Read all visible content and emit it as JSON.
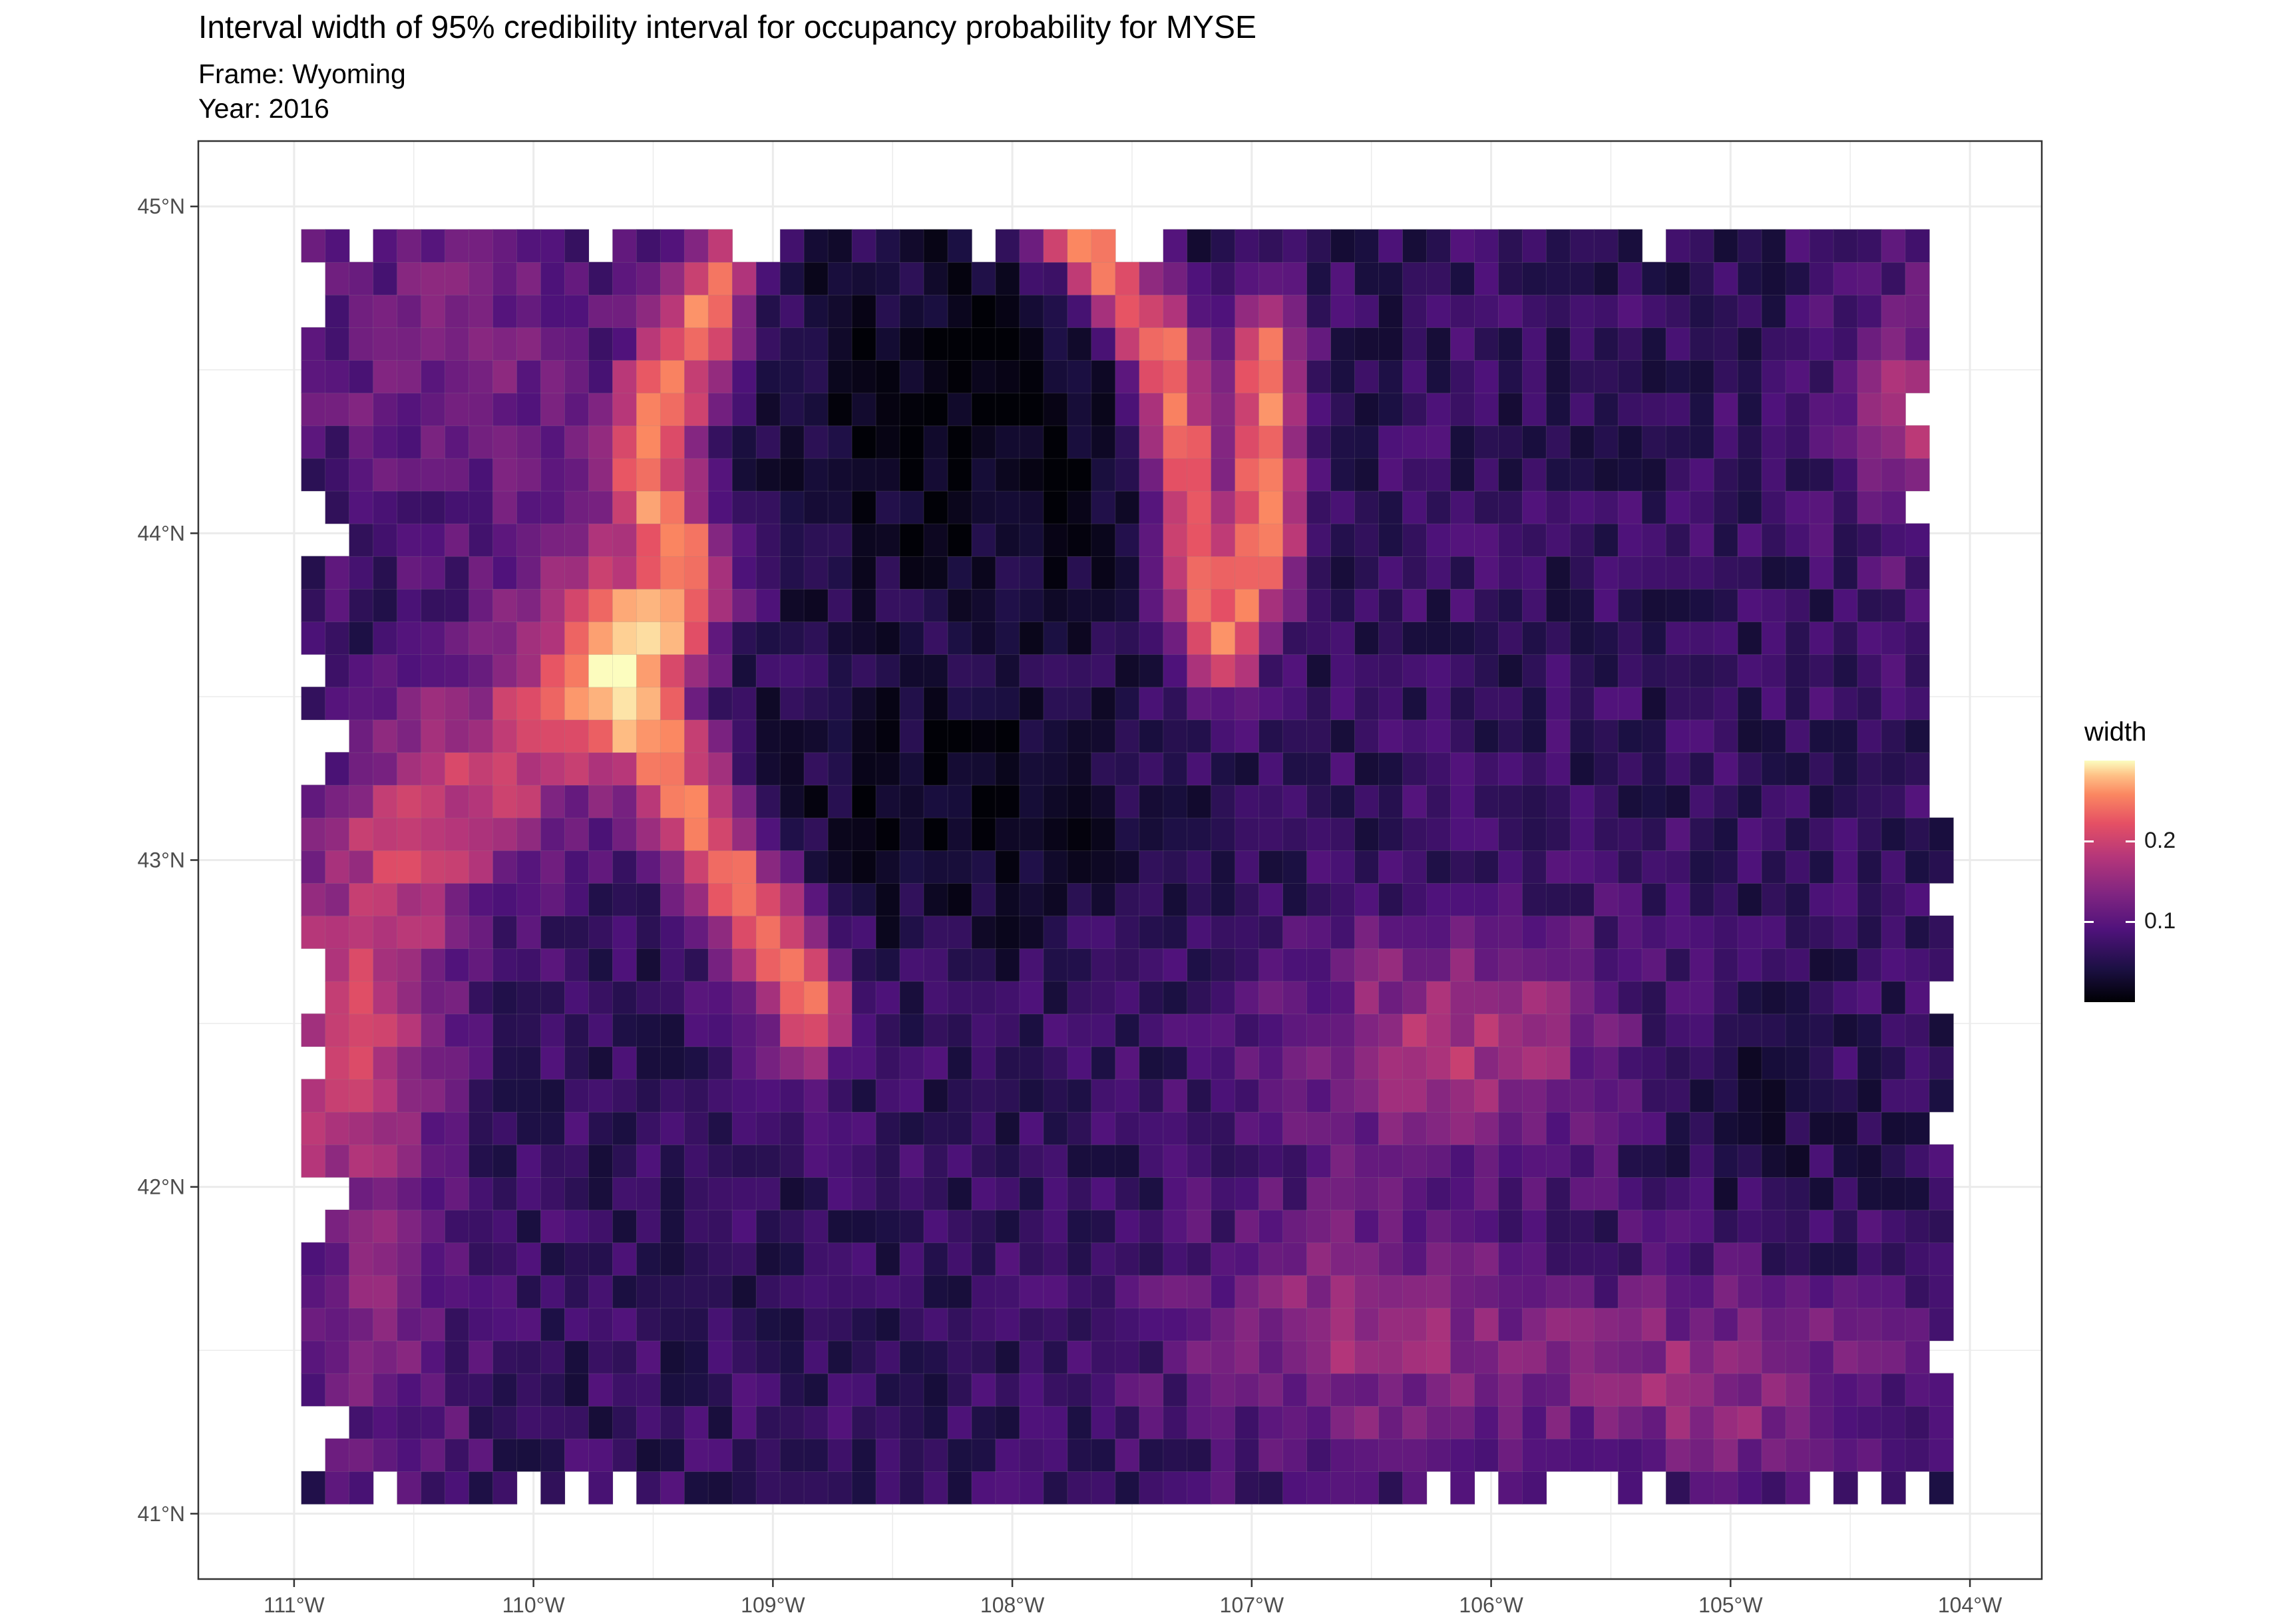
{
  "chart_data": {
    "type": "heatmap",
    "title": "Interval width of 95% credibility interval for occupancy probability for MYSE",
    "subtitle": [
      "Frame: Wyoming",
      "Year: 2016"
    ],
    "x_axis": {
      "ticks": [
        -111,
        -110,
        -109,
        -108,
        -107,
        -106,
        -105,
        -104
      ],
      "tick_labels": [
        "111°W",
        "110°W",
        "109°W",
        "108°W",
        "107°W",
        "106°W",
        "105°W",
        "104°W"
      ],
      "range": [
        -111.4,
        -103.7
      ]
    },
    "y_axis": {
      "ticks": [
        41,
        42,
        43,
        44,
        45
      ],
      "tick_labels": [
        "41°N",
        "42°N",
        "43°N",
        "44°N",
        "45°N"
      ],
      "range": [
        40.8,
        45.2
      ]
    },
    "grid": true,
    "legend": {
      "title": "width",
      "position": "right",
      "tick_values": [
        0.1,
        0.2
      ],
      "tick_labels": [
        "0.1",
        "0.2"
      ],
      "range": [
        0.0,
        0.3
      ],
      "colormap": "magma"
    },
    "regions": [
      {
        "area": "northwest",
        "approx_width": 0.12
      },
      {
        "area": "west-central band",
        "approx_width": 0.2
      },
      {
        "area": "north-central basin",
        "approx_width": 0.02
      },
      {
        "area": "north ridge",
        "approx_width": 0.22
      },
      {
        "area": "central",
        "approx_width": 0.06
      },
      {
        "area": "east",
        "approx_width": 0.05
      },
      {
        "area": "south-central",
        "approx_width": 0.15
      },
      {
        "area": "southeast",
        "approx_width": 0.14
      },
      {
        "area": "far east edge",
        "approx_width": 0.16
      }
    ]
  }
}
